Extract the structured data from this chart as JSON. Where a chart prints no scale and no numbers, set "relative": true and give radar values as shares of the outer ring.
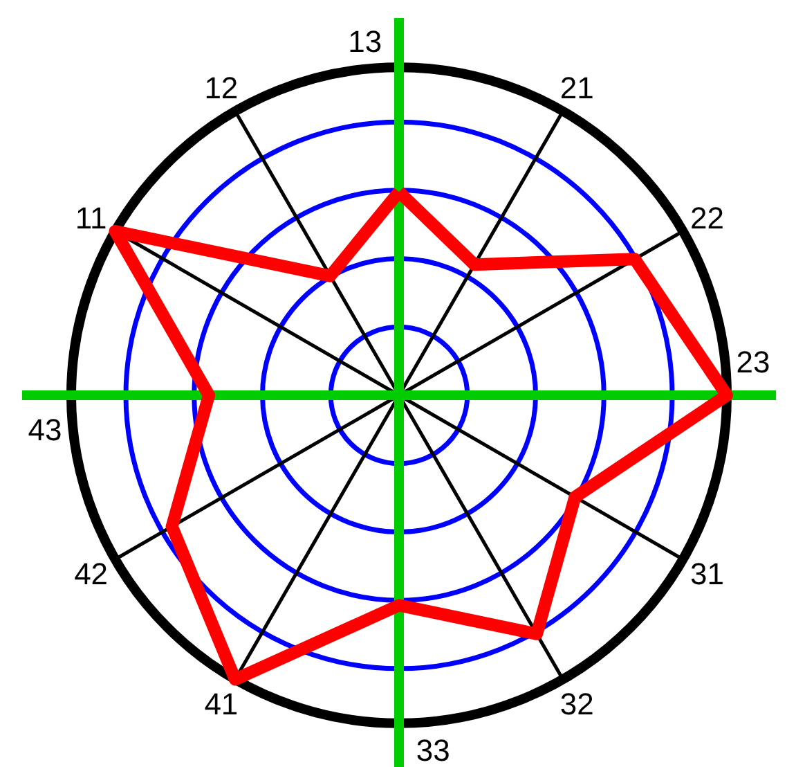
{
  "chart_data": {
    "type": "radar",
    "categories": [
      "13",
      "21",
      "22",
      "23",
      "31",
      "32",
      "33",
      "41",
      "42",
      "43",
      "11",
      "12"
    ],
    "relative": true,
    "grid": true,
    "series": [
      {
        "color": "#ff0000",
        "values": [
          0.62,
          0.46,
          0.83,
          1.0,
          0.62,
          0.84,
          0.64,
          1.0,
          0.8,
          0.58,
          1.0,
          0.42
        ]
      }
    ]
  }
}
